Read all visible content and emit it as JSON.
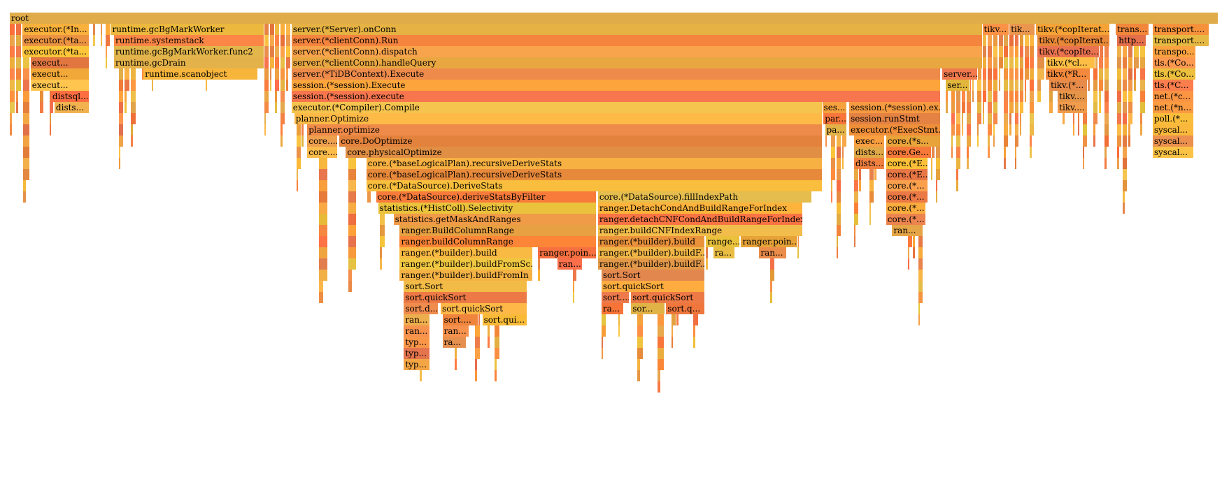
{
  "chart_data": {
    "type": "flame",
    "root": "root",
    "frames": [
      {
        "label": "root",
        "depth": 0,
        "start": 0,
        "end": 1
      },
      {
        "label": "executor.(*In...",
        "depth": 1,
        "start": 0.0106,
        "end": 0.0657
      },
      {
        "label": "runtime.gcBgMarkWorker",
        "depth": 1,
        "start": 0.0836,
        "end": 0.2106
      },
      {
        "label": "server.(*Server).onConn",
        "depth": 1,
        "start": 0.2331,
        "end": 0.8047
      },
      {
        "label": "tikv...",
        "depth": 1,
        "start": 0.8047,
        "end": 0.8271
      },
      {
        "label": "tik...",
        "depth": 1,
        "start": 0.8271,
        "end": 0.8482
      },
      {
        "label": "tikv.(*copIterat...",
        "depth": 1,
        "start": 0.849,
        "end": 0.9103
      },
      {
        "label": "trans...",
        "depth": 1,
        "start": 0.915,
        "end": 0.9428
      },
      {
        "label": "transport....",
        "depth": 1,
        "start": 0.9455,
        "end": 0.9924
      },
      {
        "label": "executor.(*ta...",
        "depth": 2,
        "start": 0.0106,
        "end": 0.0657
      },
      {
        "label": "runtime.systemstack",
        "depth": 2,
        "start": 0.0862,
        "end": 0.2106
      },
      {
        "label": "server.(*clientConn).Run",
        "depth": 2,
        "start": 0.2331,
        "end": 0.8047
      },
      {
        "label": "tikv.(*copIterat...",
        "depth": 2,
        "start": 0.8503,
        "end": 0.9103
      },
      {
        "label": "http...",
        "depth": 2,
        "start": 0.9162,
        "end": 0.9402
      },
      {
        "label": "transport....",
        "depth": 2,
        "start": 0.9455,
        "end": 0.9924
      },
      {
        "label": "executor.(*ta...",
        "depth": 3,
        "start": 0.0106,
        "end": 0.0657
      },
      {
        "label": "runtime.gcBgMarkWorker.func2",
        "depth": 3,
        "start": 0.0862,
        "end": 0.2106
      },
      {
        "label": "server.(*clientConn).dispatch",
        "depth": 3,
        "start": 0.2331,
        "end": 0.8047
      },
      {
        "label": "tikv.(*copIte...",
        "depth": 3,
        "start": 0.8503,
        "end": 0.9015
      },
      {
        "label": "transpo...",
        "depth": 3,
        "start": 0.9455,
        "end": 0.9812
      },
      {
        "label": "execut...",
        "depth": 4,
        "start": 0.0172,
        "end": 0.0657
      },
      {
        "label": "runtime.gcDrain",
        "depth": 4,
        "start": 0.0862,
        "end": 0.2106
      },
      {
        "label": "server.(*clientConn).handleQuery",
        "depth": 4,
        "start": 0.2331,
        "end": 0.8047
      },
      {
        "label": "tikv.(*cl...",
        "depth": 4,
        "start": 0.857,
        "end": 0.8982
      },
      {
        "label": "tls.(*Co...",
        "depth": 4,
        "start": 0.9455,
        "end": 0.9812
      },
      {
        "label": "execut...",
        "depth": 5,
        "start": 0.0172,
        "end": 0.0657
      },
      {
        "label": "runtime.scanobject",
        "depth": 5,
        "start": 0.1107,
        "end": 0.2055
      },
      {
        "label": "server.(*TiDBContext).Execute",
        "depth": 5,
        "start": 0.2331,
        "end": 0.7705
      },
      {
        "label": "server...",
        "depth": 5,
        "start": 0.7715,
        "end": 0.8012
      },
      {
        "label": "tikv.(*R...",
        "depth": 5,
        "start": 0.857,
        "end": 0.894
      },
      {
        "label": "tls.(*Co...",
        "depth": 5,
        "start": 0.9455,
        "end": 0.9812
      },
      {
        "label": "execut...",
        "depth": 6,
        "start": 0.0172,
        "end": 0.0657
      },
      {
        "label": "session.(*session).Execute",
        "depth": 6,
        "start": 0.2331,
        "end": 0.7705
      },
      {
        "label": "ser...",
        "depth": 6,
        "start": 0.7745,
        "end": 0.7945
      },
      {
        "label": "tikv.(*...",
        "depth": 6,
        "start": 0.86,
        "end": 0.892
      },
      {
        "label": "tls.(*C...",
        "depth": 6,
        "start": 0.9455,
        "end": 0.98
      },
      {
        "label": "distsql...",
        "depth": 7,
        "start": 0.0341,
        "end": 0.0657
      },
      {
        "label": "session.(*session).execute",
        "depth": 7,
        "start": 0.2331,
        "end": 0.7705
      },
      {
        "label": "tikv....",
        "depth": 7,
        "start": 0.867,
        "end": 0.892
      },
      {
        "label": "net.(*c...",
        "depth": 7,
        "start": 0.9455,
        "end": 0.98
      },
      {
        "label": "dists...",
        "depth": 8,
        "start": 0.037,
        "end": 0.0657
      },
      {
        "label": "executor.(*Compiler).Compile",
        "depth": 8,
        "start": 0.2331,
        "end": 0.6722
      },
      {
        "label": "ses...",
        "depth": 8,
        "start": 0.6722,
        "end": 0.693
      },
      {
        "label": "session.(*session).ex...",
        "depth": 8,
        "start": 0.6945,
        "end": 0.7705
      },
      {
        "label": "tikv....",
        "depth": 8,
        "start": 0.867,
        "end": 0.892
      },
      {
        "label": "net.(*n...",
        "depth": 8,
        "start": 0.9455,
        "end": 0.98
      },
      {
        "label": "planner.Optimize",
        "depth": 9,
        "start": 0.2354,
        "end": 0.6722
      },
      {
        "label": "par...",
        "depth": 9,
        "start": 0.6732,
        "end": 0.693
      },
      {
        "label": "session.runStmt",
        "depth": 9,
        "start": 0.6945,
        "end": 0.7705
      },
      {
        "label": "poll.(*...",
        "depth": 9,
        "start": 0.9455,
        "end": 0.98
      },
      {
        "label": "planner.optimize",
        "depth": 10,
        "start": 0.2461,
        "end": 0.6722
      },
      {
        "label": "pa...",
        "depth": 10,
        "start": 0.6745,
        "end": 0.693
      },
      {
        "label": "executor.(*ExecStmt...",
        "depth": 10,
        "start": 0.6945,
        "end": 0.7705
      },
      {
        "label": "syscal...",
        "depth": 10,
        "start": 0.9455,
        "end": 0.98
      },
      {
        "label": "core....",
        "depth": 11,
        "start": 0.2461,
        "end": 0.2716
      },
      {
        "label": "core.DoOptimize",
        "depth": 11,
        "start": 0.2727,
        "end": 0.6722
      },
      {
        "label": "exec...",
        "depth": 11,
        "start": 0.6985,
        "end": 0.724
      },
      {
        "label": "core.(*s...",
        "depth": 11,
        "start": 0.725,
        "end": 0.7705
      },
      {
        "label": "syscal...",
        "depth": 11,
        "start": 0.9455,
        "end": 0.98
      },
      {
        "label": "core....",
        "depth": 12,
        "start": 0.2461,
        "end": 0.2716
      },
      {
        "label": "core.physicalOptimize",
        "depth": 12,
        "start": 0.278,
        "end": 0.6722
      },
      {
        "label": "dists...",
        "depth": 12,
        "start": 0.6985,
        "end": 0.724
      },
      {
        "label": "core.Ge...",
        "depth": 12,
        "start": 0.725,
        "end": 0.763
      },
      {
        "label": "syscal...",
        "depth": 12,
        "start": 0.9455,
        "end": 0.98
      },
      {
        "label": "core.(*baseLogicalPlan).recursiveDeriveStats",
        "depth": 13,
        "start": 0.295,
        "end": 0.6722
      },
      {
        "label": "dists...",
        "depth": 13,
        "start": 0.6985,
        "end": 0.724
      },
      {
        "label": "core.(*E...",
        "depth": 13,
        "start": 0.725,
        "end": 0.76
      },
      {
        "label": "core.(*baseLogicalPlan).recursiveDeriveStats",
        "depth": 14,
        "start": 0.295,
        "end": 0.6722
      },
      {
        "label": "core.(*E...",
        "depth": 14,
        "start": 0.725,
        "end": 0.76
      },
      {
        "label": "core.(*DataSource).DeriveStats",
        "depth": 15,
        "start": 0.295,
        "end": 0.6722
      },
      {
        "label": "core.(*...",
        "depth": 15,
        "start": 0.725,
        "end": 0.76
      },
      {
        "label": "core.(*DataSource).deriveStatsByFilter",
        "depth": 16,
        "start": 0.303,
        "end": 0.4856
      },
      {
        "label": "core.(*DataSource).fillIndexPath",
        "depth": 16,
        "start": 0.4866,
        "end": 0.664
      },
      {
        "label": "core.(*...",
        "depth": 16,
        "start": 0.725,
        "end": 0.76
      },
      {
        "label": "statistics.(*HistColl).Selectivity",
        "depth": 17,
        "start": 0.3047,
        "end": 0.4856
      },
      {
        "label": "ranger.DetachCondAndBuildRangeForIndex",
        "depth": 17,
        "start": 0.4866,
        "end": 0.656
      },
      {
        "label": "core.(*...",
        "depth": 17,
        "start": 0.725,
        "end": 0.758
      },
      {
        "label": "statistics.getMaskAndRanges",
        "depth": 18,
        "start": 0.3175,
        "end": 0.4856
      },
      {
        "label": "ranger.detachCNFCondAndBuildRangeForIndex",
        "depth": 18,
        "start": 0.4866,
        "end": 0.656
      },
      {
        "label": "core.(*...",
        "depth": 18,
        "start": 0.725,
        "end": 0.758
      },
      {
        "label": "ranger.BuildColumnRange",
        "depth": 19,
        "start": 0.3226,
        "end": 0.4856
      },
      {
        "label": "ranger.buildCNFIndexRange",
        "depth": 19,
        "start": 0.4866,
        "end": 0.656
      },
      {
        "label": "ran...",
        "depth": 19,
        "start": 0.73,
        "end": 0.756
      },
      {
        "label": "ranger.buildColumnRange",
        "depth": 20,
        "start": 0.3226,
        "end": 0.4856
      },
      {
        "label": "ranger.(*builder).build",
        "depth": 20,
        "start": 0.4866,
        "end": 0.575
      },
      {
        "label": "range...",
        "depth": 20,
        "start": 0.576,
        "end": 0.604
      },
      {
        "label": "ranger.poin...",
        "depth": 20,
        "start": 0.605,
        "end": 0.652
      },
      {
        "label": "ranger.(*builder).build",
        "depth": 21,
        "start": 0.3226,
        "end": 0.433
      },
      {
        "label": "ranger.poin...",
        "depth": 21,
        "start": 0.437,
        "end": 0.4856
      },
      {
        "label": "ranger.(*builder).buildF...",
        "depth": 21,
        "start": 0.4866,
        "end": 0.575
      },
      {
        "label": "ra...",
        "depth": 21,
        "start": 0.582,
        "end": 0.6
      },
      {
        "label": "ran...",
        "depth": 21,
        "start": 0.62,
        "end": 0.643
      },
      {
        "label": "ranger.(*builder).buildFromSc...",
        "depth": 22,
        "start": 0.3226,
        "end": 0.433
      },
      {
        "label": "ran...",
        "depth": 22,
        "start": 0.453,
        "end": 0.474
      },
      {
        "label": "ranger.(*builder).buildF...",
        "depth": 22,
        "start": 0.4866,
        "end": 0.575
      },
      {
        "label": "ranger.(*builder).buildFromIn",
        "depth": 23,
        "start": 0.3226,
        "end": 0.433
      },
      {
        "label": "sort.Sort",
        "depth": 23,
        "start": 0.4895,
        "end": 0.575
      },
      {
        "label": "sort.Sort",
        "depth": 24,
        "start": 0.326,
        "end": 0.428
      },
      {
        "label": "sort.quickSort",
        "depth": 24,
        "start": 0.4895,
        "end": 0.575
      },
      {
        "label": "sort.quickSort",
        "depth": 25,
        "start": 0.326,
        "end": 0.428
      },
      {
        "label": "sort....",
        "depth": 25,
        "start": 0.4895,
        "end": 0.513
      },
      {
        "label": "sort.quickSort",
        "depth": 25,
        "start": 0.514,
        "end": 0.575
      },
      {
        "label": "sort.d...",
        "depth": 26,
        "start": 0.326,
        "end": 0.355
      },
      {
        "label": "sort.quickSort",
        "depth": 26,
        "start": 0.3565,
        "end": 0.428
      },
      {
        "label": "ra...",
        "depth": 26,
        "start": 0.4895,
        "end": 0.508
      },
      {
        "label": "sor...",
        "depth": 26,
        "start": 0.514,
        "end": 0.542
      },
      {
        "label": "sort.q...",
        "depth": 26,
        "start": 0.543,
        "end": 0.575
      },
      {
        "label": "ran...",
        "depth": 27,
        "start": 0.326,
        "end": 0.348
      },
      {
        "label": "sort....",
        "depth": 27,
        "start": 0.358,
        "end": 0.388
      },
      {
        "label": "sort.qui...",
        "depth": 27,
        "start": 0.391,
        "end": 0.428
      },
      {
        "label": "ran...",
        "depth": 28,
        "start": 0.326,
        "end": 0.348
      },
      {
        "label": "ran...",
        "depth": 28,
        "start": 0.358,
        "end": 0.38
      },
      {
        "label": "typ...",
        "depth": 29,
        "start": 0.326,
        "end": 0.348
      },
      {
        "label": "ra...",
        "depth": 29,
        "start": 0.358,
        "end": 0.378
      },
      {
        "label": "typ...",
        "depth": 30,
        "start": 0.326,
        "end": 0.348
      },
      {
        "label": "typ...",
        "depth": 31,
        "start": 0.326,
        "end": 0.348
      }
    ],
    "unlabeled_stacks": [
      {
        "start": 0.0,
        "end": 0.0106,
        "top": 11
      },
      {
        "start": 0.011,
        "end": 0.0172,
        "top": 17
      },
      {
        "start": 0.025,
        "end": 0.033,
        "top": 18
      },
      {
        "start": 0.033,
        "end": 0.037,
        "top": 14
      },
      {
        "start": 0.056,
        "end": 0.064,
        "top": 12
      },
      {
        "start": 0.069,
        "end": 0.074,
        "top": 6
      },
      {
        "start": 0.075,
        "end": 0.0836,
        "top": 5
      },
      {
        "start": 0.09,
        "end": 0.105,
        "top": 15
      },
      {
        "start": 0.105,
        "end": 0.13,
        "top": 7
      },
      {
        "start": 0.13,
        "end": 0.144,
        "top": 7
      },
      {
        "start": 0.148,
        "end": 0.16,
        "top": 6
      },
      {
        "start": 0.162,
        "end": 0.175,
        "top": 8
      },
      {
        "start": 0.2106,
        "end": 0.2331,
        "top": 12
      },
      {
        "start": 0.237,
        "end": 0.2461,
        "top": 16
      },
      {
        "start": 0.248,
        "end": 0.256,
        "top": 22
      },
      {
        "start": 0.256,
        "end": 0.264,
        "top": 29
      },
      {
        "start": 0.264,
        "end": 0.27,
        "top": 23
      },
      {
        "start": 0.2727,
        "end": 0.278,
        "top": 20
      },
      {
        "start": 0.28,
        "end": 0.288,
        "top": 26
      },
      {
        "start": 0.288,
        "end": 0.295,
        "top": 23
      },
      {
        "start": 0.296,
        "end": 0.303,
        "top": 22
      },
      {
        "start": 0.306,
        "end": 0.317,
        "top": 24
      },
      {
        "start": 0.318,
        "end": 0.3226,
        "top": 21
      },
      {
        "start": 0.326,
        "end": 0.348,
        "top": 33
      },
      {
        "start": 0.358,
        "end": 0.378,
        "top": 34
      },
      {
        "start": 0.38,
        "end": 0.39,
        "top": 34
      },
      {
        "start": 0.391,
        "end": 0.4,
        "top": 35
      },
      {
        "start": 0.401,
        "end": 0.412,
        "top": 36
      },
      {
        "start": 0.412,
        "end": 0.42,
        "top": 36
      },
      {
        "start": 0.42,
        "end": 0.428,
        "top": 37
      },
      {
        "start": 0.437,
        "end": 0.453,
        "top": 27
      },
      {
        "start": 0.453,
        "end": 0.474,
        "top": 27
      },
      {
        "start": 0.476,
        "end": 0.4856,
        "top": 24
      },
      {
        "start": 0.4895,
        "end": 0.508,
        "top": 33
      },
      {
        "start": 0.514,
        "end": 0.53,
        "top": 33
      },
      {
        "start": 0.53,
        "end": 0.542,
        "top": 34
      },
      {
        "start": 0.543,
        "end": 0.556,
        "top": 34
      },
      {
        "start": 0.556,
        "end": 0.575,
        "top": 35
      },
      {
        "start": 0.576,
        "end": 0.59,
        "top": 26
      },
      {
        "start": 0.59,
        "end": 0.6,
        "top": 25
      },
      {
        "start": 0.605,
        "end": 0.62,
        "top": 26
      },
      {
        "start": 0.62,
        "end": 0.643,
        "top": 26
      },
      {
        "start": 0.643,
        "end": 0.656,
        "top": 24
      },
      {
        "start": 0.656,
        "end": 0.664,
        "top": 22
      },
      {
        "start": 0.664,
        "end": 0.6722,
        "top": 19
      },
      {
        "start": 0.6745,
        "end": 0.693,
        "top": 22
      },
      {
        "start": 0.6985,
        "end": 0.724,
        "top": 21
      },
      {
        "start": 0.73,
        "end": 0.756,
        "top": 29
      },
      {
        "start": 0.758,
        "end": 0.7705,
        "top": 19
      },
      {
        "start": 0.7745,
        "end": 0.8047,
        "top": 17
      },
      {
        "start": 0.8047,
        "end": 0.8271,
        "top": 15
      },
      {
        "start": 0.8271,
        "end": 0.8482,
        "top": 14
      },
      {
        "start": 0.8503,
        "end": 0.857,
        "top": 12
      },
      {
        "start": 0.86,
        "end": 0.867,
        "top": 15
      },
      {
        "start": 0.867,
        "end": 0.892,
        "top": 14
      },
      {
        "start": 0.892,
        "end": 0.9103,
        "top": 14
      },
      {
        "start": 0.9162,
        "end": 0.93,
        "top": 19
      },
      {
        "start": 0.93,
        "end": 0.9402,
        "top": 13
      },
      {
        "start": 0.9455,
        "end": 0.98,
        "top": 13
      }
    ]
  }
}
